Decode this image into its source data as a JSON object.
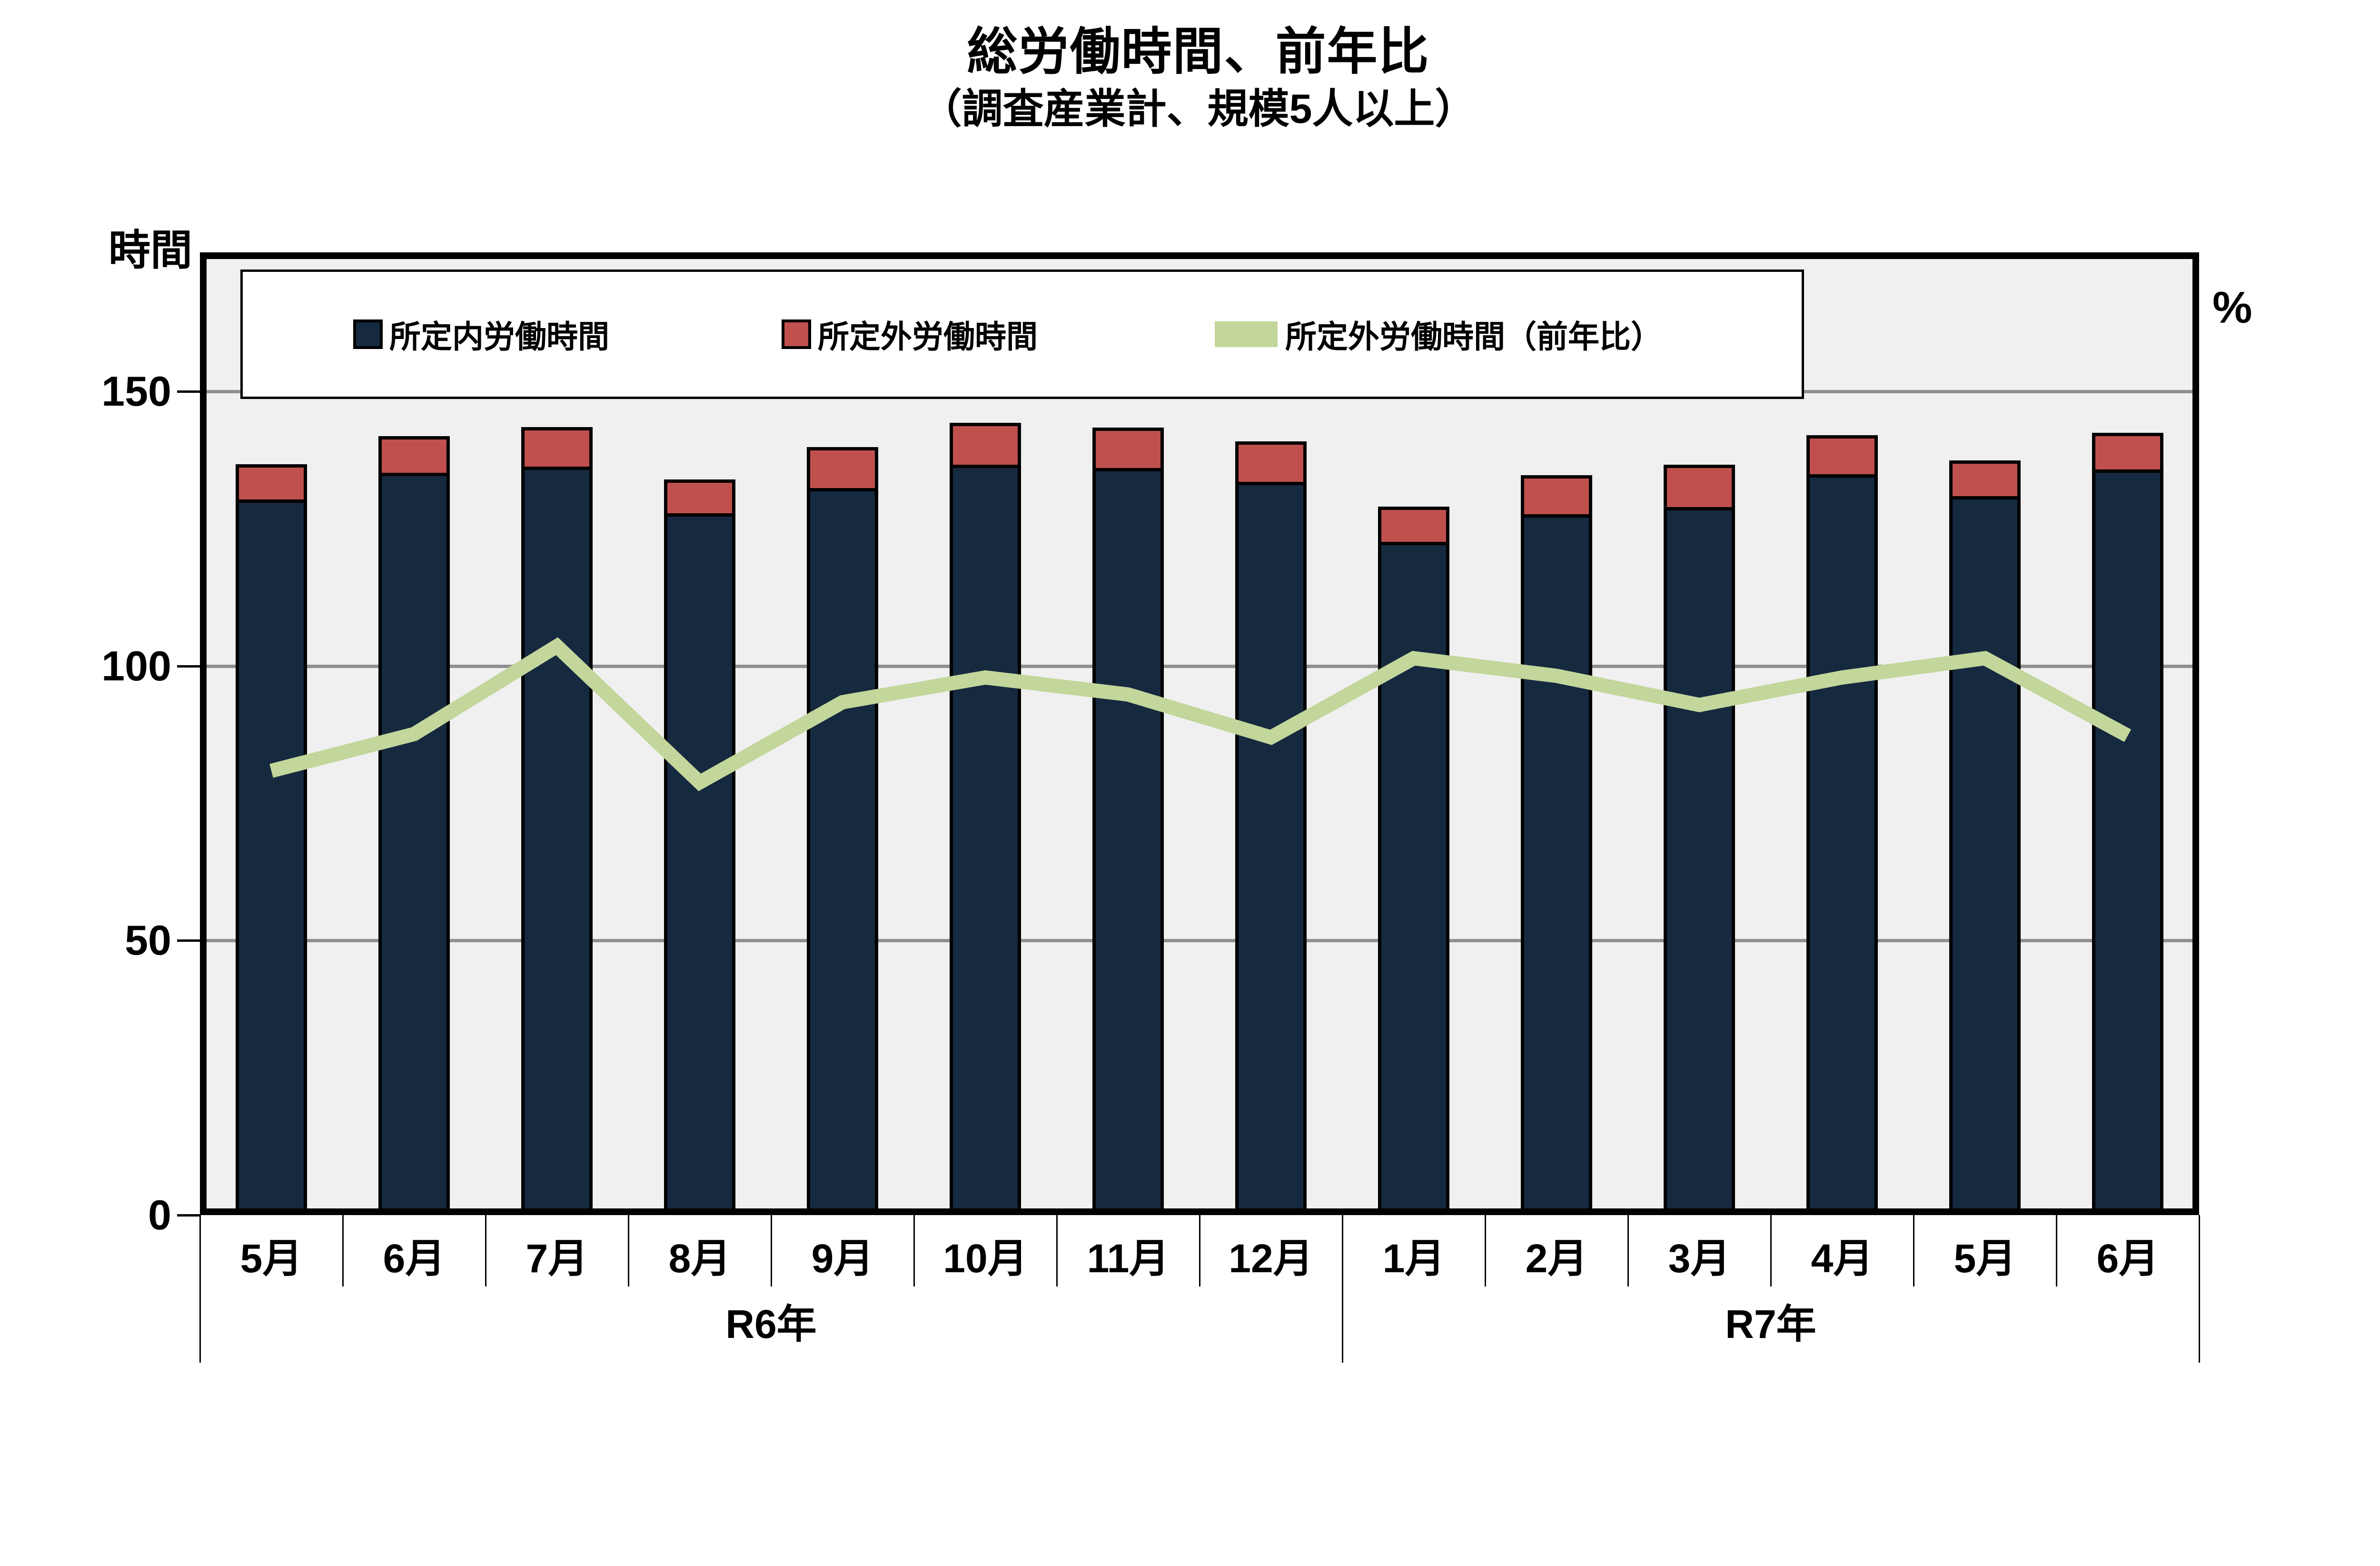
{
  "page": {
    "title": "総労働時間、前年比",
    "subtitle": "（調査産業計、規模5人以上）"
  },
  "chart_data": {
    "type": "bar",
    "subtype": "stacked-bars-with-line-overlay",
    "title": "総労働時間、前年比",
    "subtitle": "（調査産業計、規模5人以上）",
    "left_axis": {
      "unit_label": "時間",
      "ticks": [
        0,
        50,
        100,
        150
      ],
      "max": 175,
      "grid": true
    },
    "right_axis": {
      "unit_label": "%",
      "ticks": []
    },
    "categories": [
      "5月",
      "6月",
      "7月",
      "8月",
      "9月",
      "10月",
      "11月",
      "12月",
      "1月",
      "2月",
      "3月",
      "4月",
      "5月",
      "6月"
    ],
    "year_groups": [
      {
        "label": "R6年",
        "start": 0,
        "count": 8
      },
      {
        "label": "R7年",
        "start": 8,
        "count": 6
      }
    ],
    "series": [
      {
        "name": "所定内労働時間",
        "type": "bar-stack-base",
        "color": "#15293F",
        "values": [
          129.7,
          134.6,
          135.7,
          127.2,
          131.8,
          136.0,
          135.4,
          132.9,
          122.0,
          127.0,
          128.3,
          134.3,
          130.3,
          135.2
        ]
      },
      {
        "name": "所定外労働時間",
        "type": "bar-stack-top",
        "color": "#C0504D",
        "values": [
          7.0,
          7.3,
          7.8,
          6.8,
          8.1,
          8.2,
          8.0,
          8.0,
          7.0,
          7.7,
          8.3,
          7.7,
          7.1,
          7.3
        ]
      },
      {
        "name": "所定外労働時間（前年比）",
        "type": "line",
        "color": "#C3D69B",
        "values": [
          80.9,
          87.6,
          103.6,
          78.8,
          93.4,
          97.9,
          94.8,
          87.0,
          101.4,
          98.2,
          92.9,
          97.9,
          101.4,
          87.3
        ]
      }
    ],
    "legend_position": "top-inside",
    "plot_background": "#F0F0F0",
    "gridline_color": "#909090"
  }
}
